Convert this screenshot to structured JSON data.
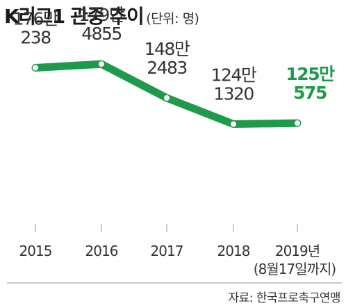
{
  "header": {
    "title": "K리그1 관중 추이",
    "unit": "(단위: 명)"
  },
  "source": "자료: 한국프로축구연맹",
  "colors": {
    "line": "#1e9a4a",
    "highlight_label": "#1e9a4a",
    "text": "#333333",
    "axis": "#aaaaaa"
  },
  "chart_data": {
    "type": "line",
    "title": "K리그1 관중 추이",
    "unit": "(단위: 명)",
    "categories": [
      "2015",
      "2016",
      "2017",
      "2018",
      "2019년"
    ],
    "x_sublabels": [
      "",
      "",
      "",
      "",
      "(8월17일까지)"
    ],
    "series": [
      {
        "values": [
          1760238,
          1794855,
          1482483,
          1241320,
          1250575
        ]
      }
    ],
    "data_labels": [
      [
        "176만",
        "238"
      ],
      [
        "179만",
        "4855"
      ],
      [
        "148만",
        "2483"
      ],
      [
        "124만",
        "1320"
      ],
      [
        "125만",
        "575"
      ]
    ],
    "highlight_index": 4,
    "ylim": [
      400000,
      2000000
    ],
    "grid": false
  }
}
